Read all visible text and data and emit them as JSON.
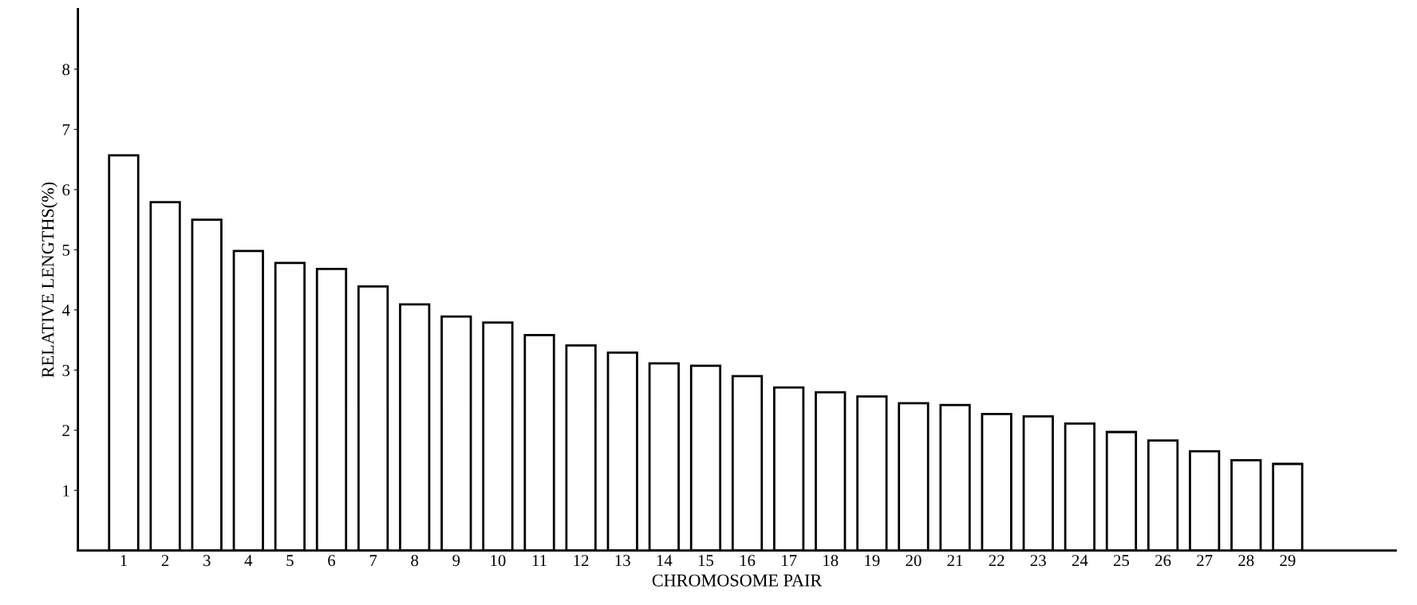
{
  "chart_data": {
    "type": "bar",
    "xlabel": "CHROMOSOME PAIR",
    "ylabel": "RELATIVE LENGTHS(%)",
    "categories": [
      "1",
      "2",
      "3",
      "4",
      "5",
      "6",
      "7",
      "8",
      "9",
      "10",
      "11",
      "12",
      "13",
      "14",
      "15",
      "16",
      "17",
      "18",
      "19",
      "20",
      "21",
      "22",
      "23",
      "24",
      "25",
      "26",
      "27",
      "28",
      "29"
    ],
    "values": [
      6.57,
      5.79,
      5.5,
      4.98,
      4.78,
      4.68,
      4.39,
      4.09,
      3.89,
      3.79,
      3.58,
      3.41,
      3.29,
      3.11,
      3.07,
      2.9,
      2.71,
      2.63,
      2.56,
      2.45,
      2.42,
      2.27,
      2.23,
      2.11,
      1.97,
      1.83,
      1.65,
      1.5,
      1.44
    ],
    "color": "#ffffff",
    "ylim": [
      0,
      9
    ],
    "yticks": [
      1,
      2,
      3,
      4,
      5,
      6,
      7,
      8
    ],
    "grid": false,
    "legend": false
  }
}
